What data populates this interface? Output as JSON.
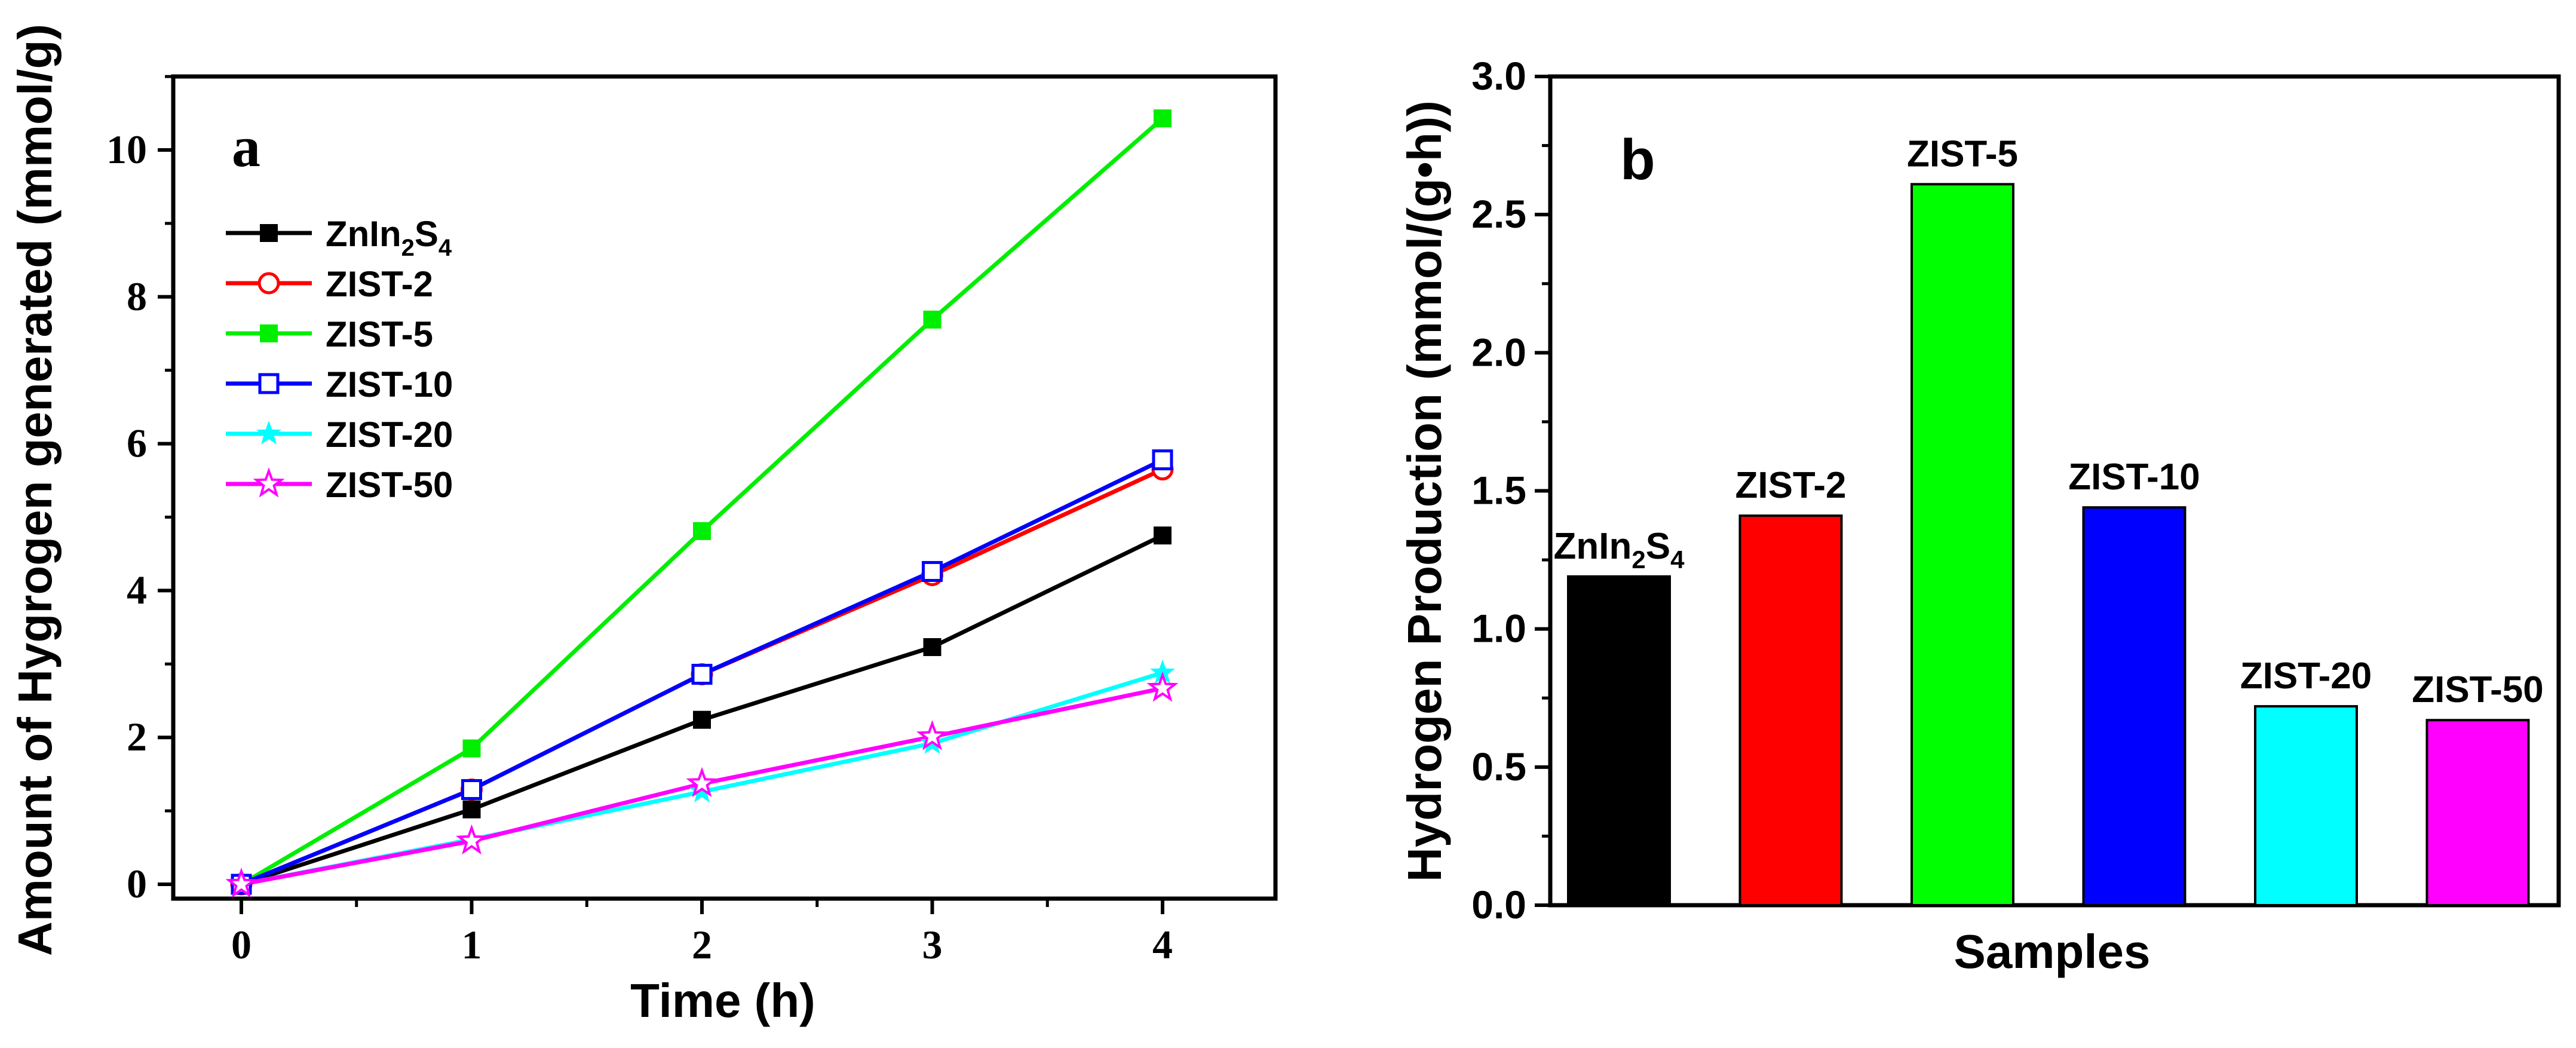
{
  "chart_data": [
    {
      "type": "line",
      "panel_letter": "a",
      "xlabel": "Time (h)",
      "ylabel": "Amount of Hygrogen generated (mmol/g)",
      "xlim": [
        -0.3,
        4.5
      ],
      "ylim": [
        -0.2,
        11.0
      ],
      "xticks": [
        0,
        1,
        2,
        3,
        4
      ],
      "yticks": [
        0,
        2,
        4,
        6,
        8,
        10
      ],
      "x": [
        0,
        1,
        2,
        3,
        4
      ],
      "series": [
        {
          "name": "ZnIn2S4",
          "name_base": "ZnIn",
          "name_sub1": "2",
          "name_mid": "S",
          "name_sub2": "4",
          "color": "#000000",
          "marker": "square-filled",
          "values": [
            0.0,
            1.02,
            2.24,
            3.23,
            4.75
          ]
        },
        {
          "name": "ZIST-2",
          "color": "#ff0000",
          "marker": "circle-open",
          "values": [
            0.0,
            1.29,
            2.86,
            4.21,
            5.65
          ]
        },
        {
          "name": "ZIST-5",
          "color": "#00ee00",
          "marker": "square-filled",
          "values": [
            0.0,
            1.85,
            4.81,
            7.69,
            10.43
          ]
        },
        {
          "name": "ZIST-10",
          "color": "#0000ff",
          "marker": "square-open",
          "values": [
            0.0,
            1.29,
            2.86,
            4.26,
            5.78
          ]
        },
        {
          "name": "ZIST-20",
          "color": "#00ffff",
          "marker": "star-filled",
          "values": [
            0.0,
            0.61,
            1.26,
            1.92,
            2.88
          ]
        },
        {
          "name": "ZIST-50",
          "color": "#ff00ff",
          "marker": "star-open",
          "values": [
            0.0,
            0.59,
            1.37,
            2.01,
            2.67
          ]
        }
      ]
    },
    {
      "type": "bar",
      "panel_letter": "b",
      "xlabel": "Samples",
      "ylabel": "Hydrogen Production (mmol/(g•h))",
      "ylim": [
        0.0,
        3.0
      ],
      "yticks": [
        "0.0",
        "0.5",
        "1.0",
        "1.5",
        "2.0",
        "2.5",
        "3.0"
      ],
      "categories": [
        "ZnIn2S4",
        "ZIST-2",
        "ZIST-5",
        "ZIST-10",
        "ZIST-20",
        "ZIST-50"
      ],
      "values": [
        1.19,
        1.41,
        2.61,
        1.44,
        0.72,
        0.67
      ],
      "colors": [
        "#000000",
        "#ff0000",
        "#00ff00",
        "#0000ff",
        "#00ffff",
        "#ff00ff"
      ]
    }
  ]
}
